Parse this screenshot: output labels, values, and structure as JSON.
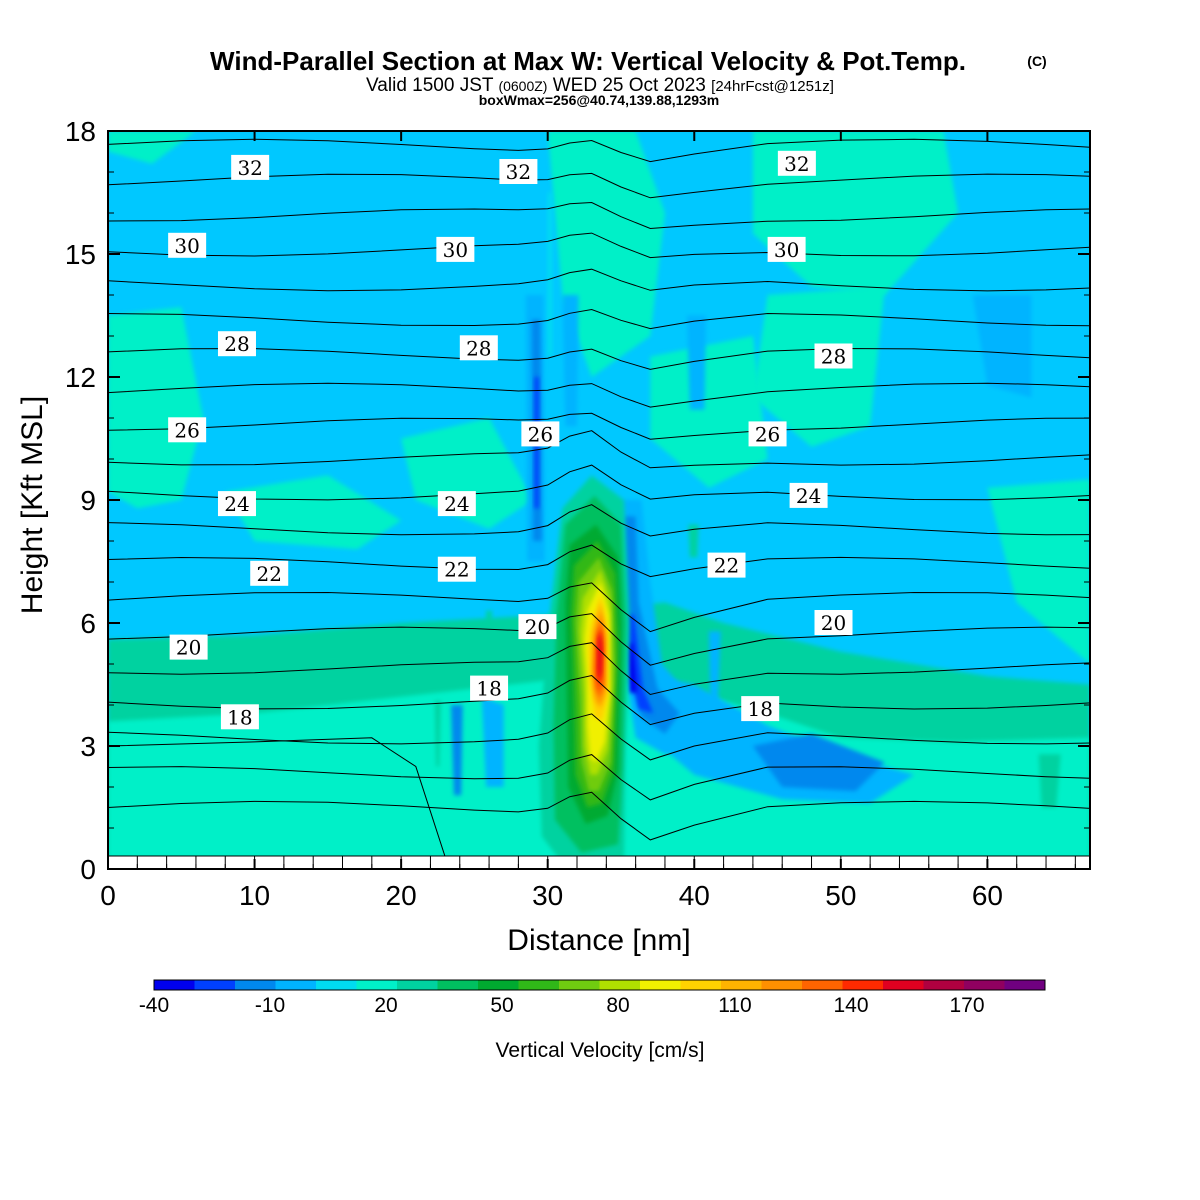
{
  "chart_data": {
    "type": "heatmap",
    "title": "Wind-Parallel Section at Max W: Vertical Velocity & Pot.Temp.",
    "copyright": "(C)",
    "subtitle_main": "Valid 1500 JST",
    "subtitle_utc": "(0600Z)",
    "subtitle_date": "WED 25 Oct 2023",
    "subtitle_fcst": "[24hrFcst@1251z]",
    "subtitle2": "boxWmax=256@40.74,139.88,1293m",
    "xlabel": "Distance [nm]",
    "ylabel": "Height [Kft MSL]",
    "xlim": [
      0,
      67
    ],
    "ylim": [
      0,
      18
    ],
    "xticks": [
      "0",
      "10",
      "20",
      "30",
      "40",
      "50",
      "60"
    ],
    "yticks": [
      "0",
      "3",
      "6",
      "9",
      "12",
      "15",
      "18"
    ],
    "colorbar": {
      "label": "Vertical Velocity [cm/s]",
      "tick_labels": [
        "-40",
        "-10",
        "20",
        "50",
        "80",
        "110",
        "140",
        "170"
      ],
      "colors": [
        "#0000ee",
        "#0040ff",
        "#0088ee",
        "#00b4ff",
        "#00dcf0",
        "#00f0c8",
        "#00d2a0",
        "#00c060",
        "#00aa30",
        "#30b818",
        "#70cc10",
        "#b0e000",
        "#f0f000",
        "#ffd200",
        "#ffb400",
        "#ff9000",
        "#ff6400",
        "#ff2a00",
        "#e00020",
        "#b00040",
        "#900060",
        "#700080"
      ]
    },
    "theta_contours": [
      {
        "label": "18",
        "level_kft": 3.7
      },
      {
        "label": "20",
        "level_kft": 5.4
      },
      {
        "label": "22",
        "level_kft": 7.1
      },
      {
        "label": "24",
        "level_kft": 8.8
      },
      {
        "label": "26",
        "level_kft": 10.6
      },
      {
        "label": "28",
        "level_kft": 12.8
      },
      {
        "label": "30",
        "level_kft": 15.1
      },
      {
        "label": "32",
        "level_kft": 16.9
      }
    ],
    "max_updraft": {
      "x_nm": 33.6,
      "z_kft": 5.5,
      "value_cms": 256
    }
  }
}
